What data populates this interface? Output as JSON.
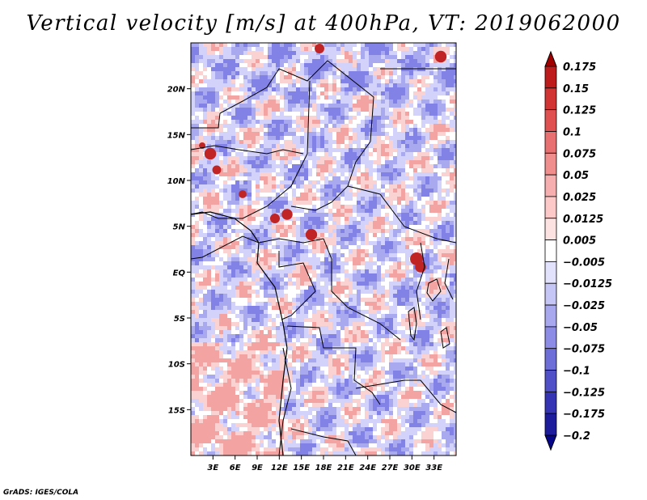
{
  "chart_data": {
    "type": "heatmap",
    "title": "Vertical velocity [m/s] at 400hPa, VT: 2019062000",
    "variable": "Vertical velocity",
    "units": "m/s",
    "level": "400hPa",
    "valid_time": "2019062000",
    "x_range": [
      0,
      36
    ],
    "y_range": [
      -20,
      25
    ],
    "x_ticks": [
      {
        "value": 3,
        "label": "3E"
      },
      {
        "value": 6,
        "label": "6E"
      },
      {
        "value": 9,
        "label": "9E"
      },
      {
        "value": 12,
        "label": "12E"
      },
      {
        "value": 15,
        "label": "15E"
      },
      {
        "value": 18,
        "label": "18E"
      },
      {
        "value": 21,
        "label": "21E"
      },
      {
        "value": 24,
        "label": "24E"
      },
      {
        "value": 27,
        "label": "27E"
      },
      {
        "value": 30,
        "label": "30E"
      },
      {
        "value": 33,
        "label": "33E"
      }
    ],
    "y_ticks": [
      {
        "value": 20,
        "label": "20N"
      },
      {
        "value": 15,
        "label": "15N"
      },
      {
        "value": 10,
        "label": "10N"
      },
      {
        "value": 5,
        "label": "5N"
      },
      {
        "value": 0,
        "label": "EQ"
      },
      {
        "value": -5,
        "label": "5S"
      },
      {
        "value": -10,
        "label": "10S"
      },
      {
        "value": -15,
        "label": "15S"
      }
    ],
    "colorbar": {
      "levels": [
        "0.175",
        "0.15",
        "0.125",
        "0.1",
        "0.075",
        "0.05",
        "0.025",
        "0.0125",
        "0.005",
        "-0.005",
        "-0.0125",
        "-0.025",
        "-0.05",
        "-0.075",
        "-0.1",
        "-0.125",
        "-0.175",
        "-0.2"
      ],
      "colors": [
        "#a00000",
        "#be1c1c",
        "#d23434",
        "#e05050",
        "#e87070",
        "#f08e8e",
        "#f7aeae",
        "#fcc8c8",
        "#fde2e2",
        "#ffffff",
        "#e2e2fc",
        "#c6c6f6",
        "#a8a8ef",
        "#8c8ce6",
        "#6e6ed8",
        "#5050c8",
        "#3434b4",
        "#1c1c9c",
        "#06068a"
      ]
    },
    "field_colors": {
      "red": "#f4a3a3",
      "pink": "#fbd2d2",
      "white": "#ffffff",
      "light_blue": "#d2d2fa",
      "blue": "#a9a9f0",
      "dark_blue": "#8282e6",
      "dark_red": "#c02424",
      "border": "#000000"
    }
  },
  "credit": "GrADS: IGES/COLA"
}
